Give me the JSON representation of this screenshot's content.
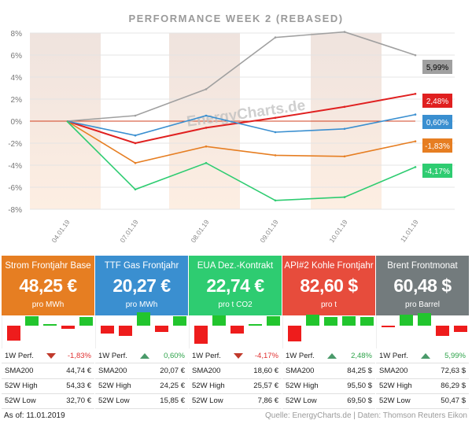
{
  "chart_data": {
    "type": "line",
    "title": "PERFORMANCE  WEEK 2 (REBASED)",
    "watermark": "EnergyCharts.de",
    "x": [
      "04.01.19",
      "07.01.19",
      "08.01.19",
      "09.01.19",
      "10.01.19",
      "11.01.19"
    ],
    "y_ticks": [
      "8%",
      "6%",
      "4%",
      "2%",
      "0%",
      "-2%",
      "-4%",
      "-6%",
      "-8%"
    ],
    "ylim": [
      -8,
      8
    ],
    "grid": true,
    "series": [
      {
        "color": "#a0a0a0",
        "values": [
          0,
          0.5,
          2.9,
          7.6,
          8.1,
          5.99
        ],
        "end_label": "5,99%"
      },
      {
        "color": "#e02020",
        "values": [
          0,
          -2.0,
          -0.6,
          0.3,
          1.3,
          2.48
        ],
        "end_label": "2,48%"
      },
      {
        "color": "#3a8fd0",
        "values": [
          0,
          -1.3,
          0.5,
          -1.0,
          -0.7,
          0.6
        ],
        "end_label": "0,60%"
      },
      {
        "color": "#e67e22",
        "values": [
          0,
          -3.8,
          -2.3,
          -3.1,
          -3.2,
          -1.83
        ],
        "end_label": "-1,83%"
      },
      {
        "color": "#2ecc71",
        "values": [
          0,
          -6.2,
          -3.8,
          -7.2,
          -6.9,
          -4.17
        ],
        "end_label": "-4,17%"
      }
    ]
  },
  "cards": [
    {
      "name": "Strom Frontjahr Base",
      "value": "48,25 €",
      "unit": "pro MWh",
      "color": "#e67e22",
      "bars": [
        -0.8,
        0.5,
        0.1,
        -0.15,
        0.45
      ],
      "perf_label": "1W Perf.",
      "perf": "-1,83%",
      "dir": "down",
      "sma_label": "SMA200",
      "sma": "44,74 €",
      "high_label": "52W High",
      "high": "54,33 €",
      "low_label": "52W Low",
      "low": "32,70 €"
    },
    {
      "name": "TTF Gas Frontjahr",
      "value": "20,27 €",
      "unit": "pro MWh",
      "color": "#3a8fd0",
      "bars": [
        -0.4,
        -0.55,
        0.7,
        -0.35,
        0.5
      ],
      "perf_label": "1W Perf.",
      "perf": "0,60%",
      "dir": "up",
      "sma_label": "SMA200",
      "sma": "20,07 €",
      "high_label": "52W High",
      "high": "24,25 €",
      "low_label": "52W Low",
      "low": "15,85 €"
    },
    {
      "name": "EUA Dez.-Kontrakt",
      "value": "22,74 €",
      "unit": "pro t CO2",
      "color": "#2ecc71",
      "bars": [
        -0.95,
        0.55,
        -0.4,
        0.05,
        0.5
      ],
      "perf_label": "1W Perf.",
      "perf": "-4,17%",
      "dir": "down",
      "sma_label": "SMA200",
      "sma": "18,60 €",
      "high_label": "52W High",
      "high": "25,57 €",
      "low_label": "52W Low",
      "low": "7,86 €"
    },
    {
      "name": "API#2 Kohle Frontjahr",
      "value": "82,60 $",
      "unit": "pro t",
      "color": "#e74c3c",
      "bars": [
        -0.85,
        0.6,
        0.45,
        0.5,
        0.45
      ],
      "perf_label": "1W Perf.",
      "perf": "2,48%",
      "dir": "up",
      "sma_label": "SMA200",
      "sma": "84,25 $",
      "high_label": "52W High",
      "high": "95,50 $",
      "low_label": "52W Low",
      "low": "69,50 $"
    },
    {
      "name": "Brent Frontmonat",
      "value": "60,48 $",
      "unit": "pro Barrel",
      "color": "#737b7d",
      "bars": [
        -0.1,
        0.6,
        0.65,
        -0.55,
        -0.35
      ],
      "perf_label": "1W Perf.",
      "perf": "5,99%",
      "dir": "up",
      "sma_label": "SMA200",
      "sma": "72,63 $",
      "high_label": "52W High",
      "high": "86,29 $",
      "low_label": "52W Low",
      "low": "50,47 $"
    }
  ],
  "footer": {
    "as_of": "As of: 11.01.2019",
    "source": "Quelle: EnergyCharts.de | Daten: Thomson Reuters Eikon"
  }
}
